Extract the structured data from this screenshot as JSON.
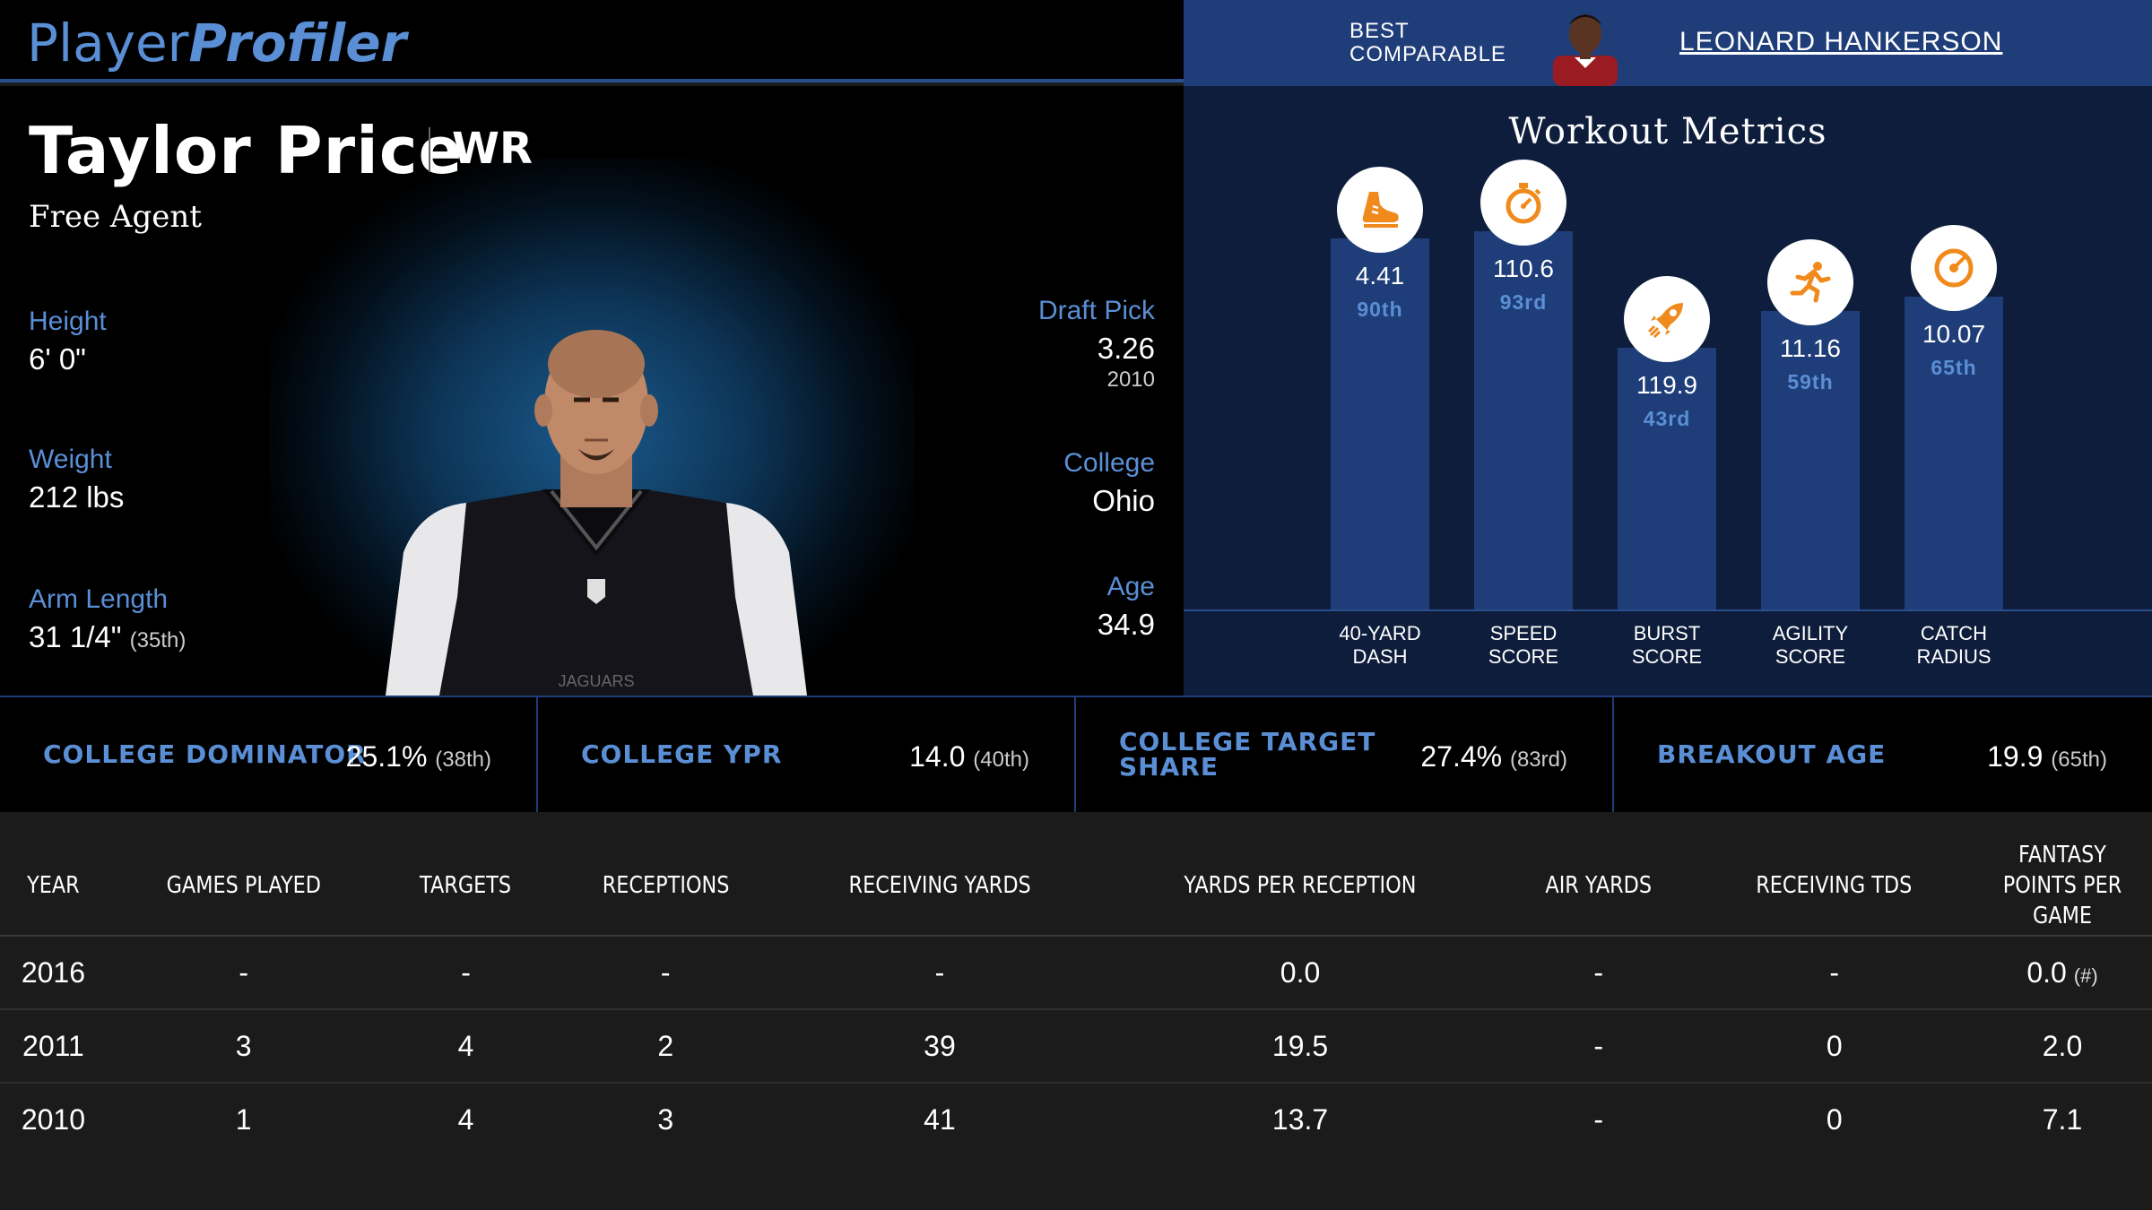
{
  "header": {
    "logo_part1": "Player",
    "logo_part2": "Profiler",
    "comparable_label_line1": "BEST",
    "comparable_label_line2": "COMPARABLE",
    "comparable_name": "LEONARD HANKERSON"
  },
  "player": {
    "name": "Taylor Price",
    "position": "WR",
    "team": "Free Agent",
    "height_label": "Height",
    "height": "6' 0\"",
    "weight_label": "Weight",
    "weight": "212 lbs",
    "arm_label": "Arm Length",
    "arm": "31 1/4\"",
    "arm_pct": "(35th)",
    "draft_label": "Draft Pick",
    "draft_pick": "3.26",
    "draft_year": "2010",
    "college_label": "College",
    "college": "Ohio",
    "age_label": "Age",
    "age": "34.9"
  },
  "workout": {
    "title": "Workout Metrics",
    "metrics": [
      {
        "value": "4.41",
        "pct": "90th",
        "label1": "40-YARD",
        "label2": "DASH",
        "icon": "shoe-icon",
        "percentile": 90
      },
      {
        "value": "110.6",
        "pct": "93rd",
        "label1": "SPEED",
        "label2": "SCORE",
        "icon": "stopwatch-icon",
        "percentile": 93
      },
      {
        "value": "119.9",
        "pct": "43rd",
        "label1": "BURST",
        "label2": "SCORE",
        "icon": "rocket-icon",
        "percentile": 43
      },
      {
        "value": "11.16",
        "pct": "59th",
        "label1": "AGILITY",
        "label2": "SCORE",
        "icon": "runner-icon",
        "percentile": 59
      },
      {
        "value": "10.07",
        "pct": "65th",
        "label1": "CATCH",
        "label2": "RADIUS",
        "icon": "target-icon",
        "percentile": 65
      }
    ]
  },
  "college_metrics": [
    {
      "label_line1": "COLLEGE DOMINATOR",
      "label_line2": "",
      "value": "25.1%",
      "pct": "(38th)"
    },
    {
      "label_line1": "COLLEGE YPR",
      "label_line2": "",
      "value": "14.0",
      "pct": "(40th)"
    },
    {
      "label_line1": "COLLEGE TARGET",
      "label_line2": "SHARE",
      "value": "27.4%",
      "pct": "(83rd)"
    },
    {
      "label_line1": "BREAKOUT AGE",
      "label_line2": "",
      "value": "19.9",
      "pct": "(65th)"
    }
  ],
  "stats": {
    "columns": [
      "YEAR",
      "GAMES PLAYED",
      "TARGETS",
      "RECEPTIONS",
      "RECEIVING YARDS",
      "YARDS PER RECEPTION",
      "AIR YARDS",
      "RECEIVING TDS",
      "FANTASY POINTS PER GAME"
    ],
    "rows": [
      [
        "2016",
        "-",
        "-",
        "-",
        "-",
        "0.0",
        "-",
        "-",
        "0.0"
      ],
      [
        "2011",
        "3",
        "4",
        "2",
        "39",
        "19.5",
        "-",
        "0",
        "2.0"
      ],
      [
        "2010",
        "1",
        "4",
        "3",
        "41",
        "13.7",
        "-",
        "0",
        "7.1"
      ]
    ],
    "note": "(#)"
  },
  "colors": {
    "accent_blue": "#5a8fd6",
    "panel_blue": "#1f3e79",
    "icon_orange": "#f08a1c"
  }
}
